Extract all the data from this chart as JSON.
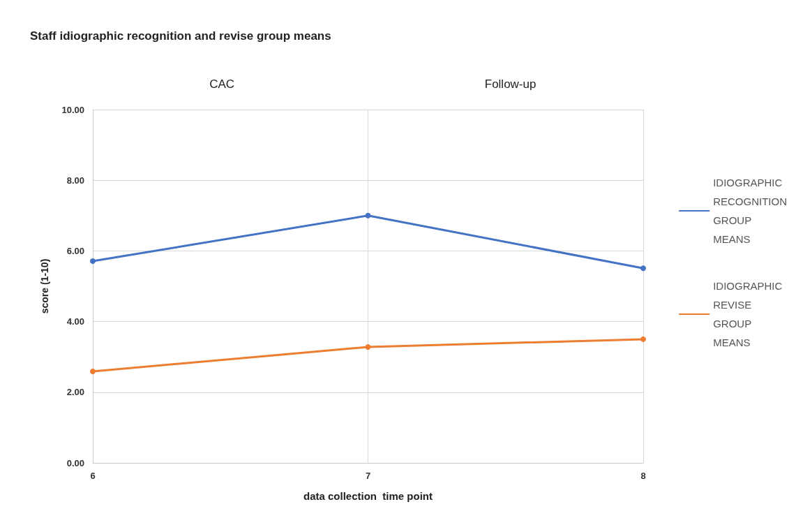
{
  "chart_data": {
    "type": "line",
    "title": "Staff idiographic recognition and revise group means",
    "xlabel": "data collection  time point",
    "ylabel": "score (1-10)",
    "annotations": [
      "CAC",
      "Follow-up"
    ],
    "x": [
      6,
      7,
      8
    ],
    "xlim": [
      6,
      8
    ],
    "xticks": [
      6,
      7,
      8
    ],
    "ylim": [
      0,
      10
    ],
    "yticks": [
      {
        "value": 0,
        "label": "0.00"
      },
      {
        "value": 2,
        "label": "2.00"
      },
      {
        "value": 4,
        "label": "4.00"
      },
      {
        "value": 6,
        "label": "6.00"
      },
      {
        "value": 8,
        "label": "8.00"
      },
      {
        "value": 10,
        "label": "10.00"
      }
    ],
    "series": [
      {
        "name": "IDIOGRAPHIC RECOGNITION GROUP MEANS",
        "color": "#4472c4",
        "values": [
          5.71,
          7.0,
          5.51
        ]
      },
      {
        "name": "IDIOGRAPHIC REVISE GROUP MEANS",
        "color": "#ed7d31",
        "values": [
          2.59,
          3.28,
          3.5
        ]
      }
    ],
    "grid": true,
    "legend": "right",
    "marker": "circle",
    "line_style": "solid"
  }
}
